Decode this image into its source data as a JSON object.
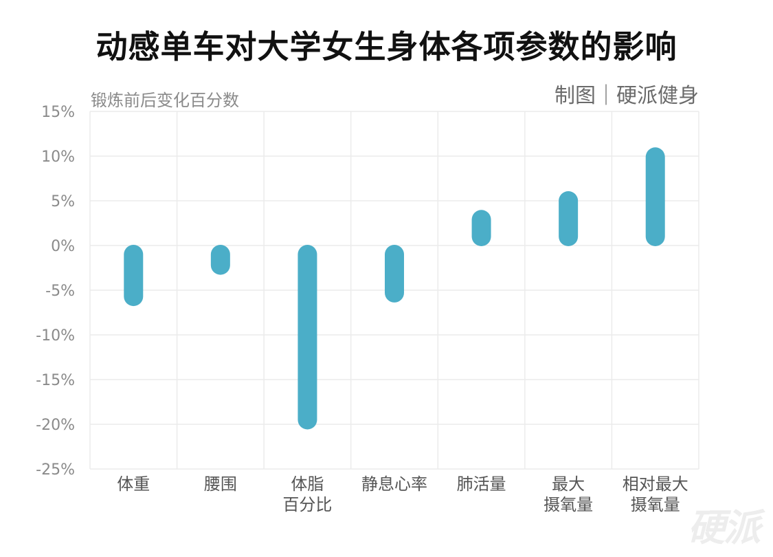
{
  "title": "动感单车对大学女生身体各项参数的影响",
  "credit": "制图｜硬派健身",
  "watermark": "硬派",
  "chart_data": {
    "type": "bar",
    "ylabel": "锻炼前后变化百分数",
    "ylim": [
      -25,
      15
    ],
    "yticks": [
      15,
      10,
      5,
      0,
      -5,
      -10,
      -15,
      -20,
      -25
    ],
    "ytick_labels": [
      "15%",
      "10%",
      "5%",
      "0%",
      "-5%",
      "-10%",
      "-15%",
      "-20%",
      "-25%"
    ],
    "grid": true,
    "categories": [
      [
        "体重"
      ],
      [
        "腰围"
      ],
      [
        "体脂",
        "百分比"
      ],
      [
        "静息心率"
      ],
      [
        "肺活量"
      ],
      [
        "最大",
        "摄氧量"
      ],
      [
        "相对最大",
        "摄氧量"
      ]
    ],
    "values": [
      -6.7,
      -3.2,
      -20.5,
      -6.3,
      3.9,
      6.0,
      10.9
    ],
    "color": "#4baec8"
  }
}
